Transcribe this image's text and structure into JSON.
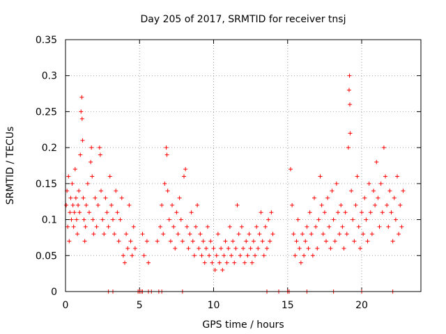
{
  "chart_data": {
    "type": "scatter",
    "title": "Day 205 of 2017, SRMTID for receiver tnsj",
    "xlabel": "GPS time / hours",
    "ylabel": "SRMTID / TECUs",
    "xlim": [
      0,
      24
    ],
    "ylim": [
      0,
      0.35
    ],
    "xticks": [
      0,
      5,
      10,
      15,
      20
    ],
    "xtick_labels": [
      "0",
      "5",
      "10",
      "15",
      "20"
    ],
    "yticks": [
      0,
      0.05,
      0.1,
      0.15,
      0.2,
      0.25,
      0.3,
      0.35
    ],
    "ytick_labels": [
      "0",
      "0.05",
      "0.1",
      "0.15",
      "0.2",
      "0.25",
      "0.3",
      "0.35"
    ],
    "grid": true,
    "marker": "plus",
    "color": "#ff0000",
    "series": [
      {
        "values": [
          [
            0.05,
            0.12
          ],
          [
            0.1,
            0.14
          ],
          [
            0.15,
            0.09
          ],
          [
            0.2,
            0.16
          ],
          [
            0.25,
            0.07
          ],
          [
            0.3,
            0.11
          ],
          [
            0.35,
            0.13
          ],
          [
            0.4,
            0.1
          ],
          [
            0.45,
            0.15
          ],
          [
            0.5,
            0.12
          ],
          [
            0.55,
            0.09
          ],
          [
            0.6,
            0.11
          ],
          [
            0.65,
            0.17
          ],
          [
            0.7,
            0.13
          ],
          [
            0.75,
            0.1
          ],
          [
            0.8,
            0.08
          ],
          [
            0.85,
            0.12
          ],
          [
            0.9,
            0.14
          ],
          [
            0.95,
            0.11
          ],
          [
            1.0,
            0.19
          ],
          [
            1.05,
            0.25
          ],
          [
            1.1,
            0.27
          ],
          [
            1.12,
            0.24
          ],
          [
            1.15,
            0.21
          ],
          [
            1.2,
            0.13
          ],
          [
            1.25,
            0.1
          ],
          [
            1.3,
            0.07
          ],
          [
            1.35,
            0.09
          ],
          [
            1.4,
            0.12
          ],
          [
            1.5,
            0.15
          ],
          [
            1.6,
            0.11
          ],
          [
            1.7,
            0.18
          ],
          [
            1.75,
            0.2
          ],
          [
            1.8,
            0.16
          ],
          [
            1.85,
            0.1
          ],
          [
            1.9,
            0.08
          ],
          [
            2.0,
            0.13
          ],
          [
            2.1,
            0.09
          ],
          [
            2.2,
            0.12
          ],
          [
            2.3,
            0.2
          ],
          [
            2.35,
            0.19
          ],
          [
            2.4,
            0.14
          ],
          [
            2.5,
            0.1
          ],
          [
            2.6,
            0.08
          ],
          [
            2.7,
            0.13
          ],
          [
            2.8,
            0.11
          ],
          [
            2.9,
            0.09
          ],
          [
            3.0,
            0.16
          ],
          [
            3.1,
            0.12
          ],
          [
            3.2,
            0.1
          ],
          [
            3.3,
            0.08
          ],
          [
            3.4,
            0.14
          ],
          [
            3.5,
            0.11
          ],
          [
            3.6,
            0.07
          ],
          [
            3.7,
            0.1
          ],
          [
            3.8,
            0.13
          ],
          [
            3.9,
            0.05
          ],
          [
            4.0,
            0.04
          ],
          [
            4.1,
            0.08
          ],
          [
            4.2,
            0.06
          ],
          [
            4.3,
            0.12
          ],
          [
            4.4,
            0.07
          ],
          [
            4.5,
            0.05
          ],
          [
            4.6,
            0.09
          ],
          [
            4.7,
            0.06
          ],
          [
            5.2,
            0.08
          ],
          [
            5.3,
            0.05
          ],
          [
            5.5,
            0.07
          ],
          [
            5.6,
            0.04
          ],
          [
            6.2,
            0.07
          ],
          [
            6.4,
            0.09
          ],
          [
            6.5,
            0.12
          ],
          [
            6.6,
            0.08
          ],
          [
            6.7,
            0.15
          ],
          [
            6.8,
            0.2
          ],
          [
            6.85,
            0.19
          ],
          [
            6.9,
            0.14
          ],
          [
            7.0,
            0.1
          ],
          [
            7.1,
            0.07
          ],
          [
            7.2,
            0.12
          ],
          [
            7.3,
            0.09
          ],
          [
            7.4,
            0.06
          ],
          [
            7.5,
            0.11
          ],
          [
            7.6,
            0.08
          ],
          [
            7.7,
            0.13
          ],
          [
            7.8,
            0.1
          ],
          [
            7.9,
            0.07
          ],
          [
            8.0,
            0.16
          ],
          [
            8.1,
            0.17
          ],
          [
            8.2,
            0.09
          ],
          [
            8.3,
            0.06
          ],
          [
            8.4,
            0.08
          ],
          [
            8.5,
            0.11
          ],
          [
            8.6,
            0.07
          ],
          [
            8.7,
            0.05
          ],
          [
            8.8,
            0.09
          ],
          [
            8.9,
            0.12
          ],
          [
            9.0,
            0.06
          ],
          [
            9.1,
            0.08
          ],
          [
            9.2,
            0.05
          ],
          [
            9.3,
            0.07
          ],
          [
            9.4,
            0.04
          ],
          [
            9.5,
            0.06
          ],
          [
            9.6,
            0.09
          ],
          [
            9.7,
            0.05
          ],
          [
            9.8,
            0.07
          ],
          [
            9.9,
            0.04
          ],
          [
            10.0,
            0.06
          ],
          [
            10.1,
            0.03
          ],
          [
            10.2,
            0.05
          ],
          [
            10.3,
            0.08
          ],
          [
            10.4,
            0.04
          ],
          [
            10.5,
            0.06
          ],
          [
            10.6,
            0.03
          ],
          [
            10.7,
            0.05
          ],
          [
            10.8,
            0.07
          ],
          [
            10.9,
            0.04
          ],
          [
            11.0,
            0.06
          ],
          [
            11.1,
            0.09
          ],
          [
            11.2,
            0.05
          ],
          [
            11.3,
            0.07
          ],
          [
            11.4,
            0.04
          ],
          [
            11.5,
            0.06
          ],
          [
            11.6,
            0.12
          ],
          [
            11.7,
            0.08
          ],
          [
            11.8,
            0.05
          ],
          [
            11.9,
            0.09
          ],
          [
            12.0,
            0.06
          ],
          [
            12.1,
            0.04
          ],
          [
            12.2,
            0.07
          ],
          [
            12.3,
            0.05
          ],
          [
            12.4,
            0.08
          ],
          [
            12.5,
            0.06
          ],
          [
            12.6,
            0.04
          ],
          [
            12.7,
            0.07
          ],
          [
            12.8,
            0.05
          ],
          [
            12.9,
            0.09
          ],
          [
            13.0,
            0.06
          ],
          [
            13.1,
            0.08
          ],
          [
            13.2,
            0.11
          ],
          [
            13.3,
            0.07
          ],
          [
            13.4,
            0.05
          ],
          [
            13.5,
            0.09
          ],
          [
            13.6,
            0.06
          ],
          [
            13.7,
            0.1
          ],
          [
            13.8,
            0.07
          ],
          [
            13.9,
            0.11
          ],
          [
            14.0,
            0.08
          ],
          [
            15.2,
            0.17
          ],
          [
            15.3,
            0.12
          ],
          [
            15.4,
            0.08
          ],
          [
            15.5,
            0.05
          ],
          [
            15.6,
            0.07
          ],
          [
            15.7,
            0.1
          ],
          [
            15.8,
            0.06
          ],
          [
            15.9,
            0.04
          ],
          [
            16.0,
            0.08
          ],
          [
            16.1,
            0.05
          ],
          [
            16.2,
            0.07
          ],
          [
            16.3,
            0.09
          ],
          [
            16.4,
            0.06
          ],
          [
            16.5,
            0.11
          ],
          [
            16.6,
            0.08
          ],
          [
            16.7,
            0.05
          ],
          [
            16.8,
            0.13
          ],
          [
            16.9,
            0.09
          ],
          [
            17.0,
            0.06
          ],
          [
            17.1,
            0.1
          ],
          [
            17.2,
            0.16
          ],
          [
            17.3,
            0.12
          ],
          [
            17.4,
            0.08
          ],
          [
            17.5,
            0.11
          ],
          [
            17.6,
            0.07
          ],
          [
            17.7,
            0.13
          ],
          [
            17.8,
            0.09
          ],
          [
            17.9,
            0.06
          ],
          [
            18.0,
            0.14
          ],
          [
            18.1,
            0.1
          ],
          [
            18.2,
            0.07
          ],
          [
            18.3,
            0.15
          ],
          [
            18.4,
            0.11
          ],
          [
            18.5,
            0.08
          ],
          [
            18.6,
            0.12
          ],
          [
            18.7,
            0.09
          ],
          [
            18.8,
            0.06
          ],
          [
            18.9,
            0.11
          ],
          [
            19.0,
            0.08
          ],
          [
            19.1,
            0.2
          ],
          [
            19.15,
            0.28
          ],
          [
            19.18,
            0.3
          ],
          [
            19.2,
            0.26
          ],
          [
            19.22,
            0.22
          ],
          [
            19.3,
            0.14
          ],
          [
            19.4,
            0.1
          ],
          [
            19.5,
            0.07
          ],
          [
            19.6,
            0.12
          ],
          [
            19.7,
            0.16
          ],
          [
            19.8,
            0.09
          ],
          [
            19.9,
            0.06
          ],
          [
            20.0,
            0.11
          ],
          [
            20.1,
            0.08
          ],
          [
            20.2,
            0.13
          ],
          [
            20.3,
            0.1
          ],
          [
            20.4,
            0.07
          ],
          [
            20.5,
            0.15
          ],
          [
            20.6,
            0.11
          ],
          [
            20.7,
            0.08
          ],
          [
            20.8,
            0.14
          ],
          [
            20.9,
            0.12
          ],
          [
            21.0,
            0.18
          ],
          [
            21.1,
            0.13
          ],
          [
            21.2,
            0.09
          ],
          [
            21.3,
            0.15
          ],
          [
            21.4,
            0.11
          ],
          [
            21.5,
            0.2
          ],
          [
            21.6,
            0.16
          ],
          [
            21.7,
            0.12
          ],
          [
            21.8,
            0.09
          ],
          [
            21.9,
            0.14
          ],
          [
            22.0,
            0.11
          ],
          [
            22.1,
            0.07
          ],
          [
            22.2,
            0.13
          ],
          [
            22.3,
            0.1
          ],
          [
            22.4,
            0.16
          ],
          [
            22.5,
            0.08
          ],
          [
            22.6,
            0.12
          ],
          [
            22.7,
            0.09
          ],
          [
            22.8,
            0.14
          ]
        ]
      }
    ],
    "zero_points_x": [
      2.9,
      3.2,
      4.9,
      5.0,
      5.1,
      5.2,
      5.6,
      5.8,
      6.3,
      6.5,
      7.9,
      13.6,
      14.4,
      15.0,
      15.1,
      16.3,
      18.1,
      20.0,
      22.1
    ]
  }
}
